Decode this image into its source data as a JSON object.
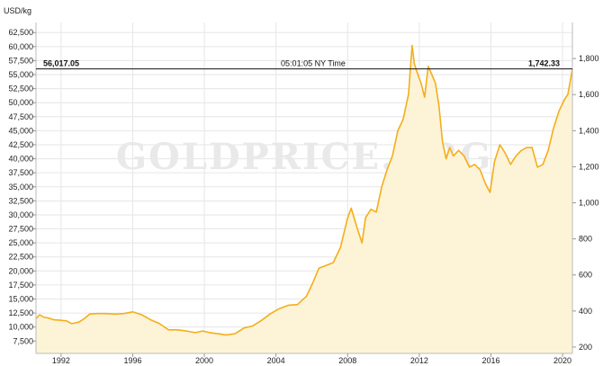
{
  "chart_data": {
    "type": "area",
    "unit_label": "USD/kg",
    "watermark": "GOLDPRICE.ORG",
    "x_ticks": [
      "1992",
      "1996",
      "2000",
      "2004",
      "2008",
      "2012",
      "2016",
      "2020"
    ],
    "x_range": [
      1990.6,
      2020.55
    ],
    "y_left": {
      "ticks": [
        "7,500",
        "10,000",
        "12,500",
        "15,000",
        "17,500",
        "20,000",
        "22,500",
        "25,000",
        "27,500",
        "30,000",
        "32,500",
        "35,000",
        "37,500",
        "40,000",
        "42,500",
        "45,000",
        "47,500",
        "50,000",
        "52,500",
        "55,000",
        "57,500",
        "60,000",
        "62,500"
      ],
      "tick_values": [
        7500,
        10000,
        12500,
        15000,
        17500,
        20000,
        22500,
        25000,
        27500,
        30000,
        32500,
        35000,
        37500,
        40000,
        42500,
        45000,
        47500,
        50000,
        52500,
        55000,
        57500,
        60000,
        62500
      ],
      "range": [
        5300,
        64300
      ]
    },
    "y_right": {
      "ticks": [
        "200",
        "400",
        "600",
        "800",
        "1,000",
        "1,200",
        "1,400",
        "1,600",
        "1,800"
      ],
      "tick_values": [
        200,
        400,
        600,
        800,
        1000,
        1200,
        1400,
        1600,
        1800
      ]
    },
    "crosshair": {
      "left_value": "56,017.05",
      "center_label": "05:01:05 NY Time",
      "right_value": "1,742.33",
      "y": 56017.05
    },
    "series": [
      {
        "color": "#f4ae1a",
        "fill": "#fdf3d7",
        "x": [
          1990.6,
          1990.8,
          1991.0,
          1991.3,
          1991.6,
          1992.0,
          1992.3,
          1992.6,
          1993.0,
          1993.3,
          1993.6,
          1994.0,
          1994.5,
          1995.0,
          1995.5,
          1996.0,
          1996.5,
          1997.0,
          1997.5,
          1998.0,
          1998.5,
          1999.0,
          1999.5,
          1999.9,
          2000.3,
          2000.8,
          2001.2,
          2001.7,
          2002.2,
          2002.7,
          2003.2,
          2003.7,
          2004.2,
          2004.7,
          2005.2,
          2005.7,
          2006.0,
          2006.4,
          2006.8,
          2007.2,
          2007.6,
          2008.0,
          2008.2,
          2008.5,
          2008.8,
          2009.0,
          2009.3,
          2009.6,
          2009.9,
          2010.2,
          2010.5,
          2010.8,
          2011.1,
          2011.4,
          2011.6,
          2011.72,
          2011.9,
          2012.1,
          2012.3,
          2012.5,
          2012.7,
          2012.9,
          2013.1,
          2013.3,
          2013.5,
          2013.7,
          2013.9,
          2014.2,
          2014.5,
          2014.8,
          2015.1,
          2015.4,
          2015.7,
          2015.95,
          2016.2,
          2016.5,
          2016.8,
          2017.1,
          2017.4,
          2017.7,
          2018.0,
          2018.3,
          2018.6,
          2018.9,
          2019.2,
          2019.5,
          2019.8,
          2020.1,
          2020.3,
          2020.55
        ],
        "y": [
          11500,
          12200,
          11800,
          11600,
          11300,
          11200,
          11100,
          10600,
          10900,
          11500,
          12300,
          12400,
          12400,
          12300,
          12400,
          12700,
          12200,
          11300,
          10600,
          9500,
          9500,
          9300,
          9000,
          9300,
          9000,
          8800,
          8600,
          8800,
          9800,
          10200,
          11200,
          12400,
          13300,
          13900,
          14000,
          15500,
          17500,
          20500,
          21000,
          21500,
          24200,
          29500,
          31200,
          28000,
          25000,
          29500,
          31000,
          30500,
          35000,
          38000,
          40500,
          45000,
          47000,
          51500,
          60200,
          57000,
          55200,
          53500,
          51000,
          56500,
          55000,
          53500,
          49500,
          43000,
          40000,
          42000,
          40500,
          41500,
          40500,
          38500,
          39000,
          38000,
          35500,
          34000,
          39500,
          42500,
          41000,
          39000,
          40500,
          41500,
          42000,
          42000,
          38500,
          39000,
          41500,
          45500,
          48500,
          50500,
          51500,
          56017
        ]
      }
    ],
    "grid": true
  }
}
